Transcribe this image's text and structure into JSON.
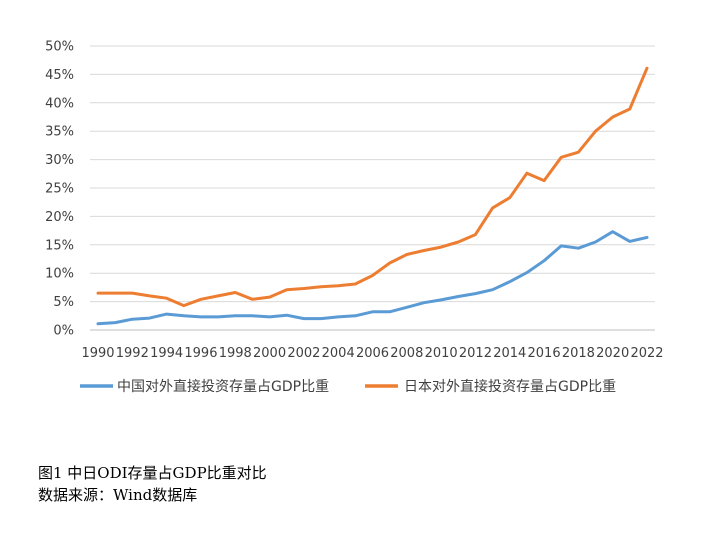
{
  "chart_data": {
    "type": "line",
    "x": [
      "1990",
      "1991",
      "1992",
      "1993",
      "1994",
      "1995",
      "1996",
      "1997",
      "1998",
      "1999",
      "2000",
      "2001",
      "2002",
      "2003",
      "2004",
      "2005",
      "2006",
      "2007",
      "2008",
      "2009",
      "2010",
      "2011",
      "2012",
      "2013",
      "2014",
      "2015",
      "2016",
      "2017",
      "2018",
      "2019",
      "2020",
      "2021",
      "2022"
    ],
    "xtick_labels": [
      "1990",
      "1992",
      "1994",
      "1996",
      "1998",
      "2000",
      "2002",
      "2004",
      "2006",
      "2008",
      "2010",
      "2012",
      "2014",
      "2016",
      "2018",
      "2020",
      "2022"
    ],
    "ytick_labels": [
      "0%",
      "5%",
      "10%",
      "15%",
      "20%",
      "25%",
      "30%",
      "35%",
      "40%",
      "45%",
      "50%"
    ],
    "ylim": [
      0,
      50
    ],
    "grid": true,
    "legend_position": "bottom",
    "series": [
      {
        "name": "中国对外直接投资存量占GDP比重",
        "color": "#5B9BD5",
        "values": [
          1.1,
          1.3,
          1.9,
          2.1,
          2.8,
          2.5,
          2.3,
          2.3,
          2.5,
          2.5,
          2.3,
          2.6,
          2.0,
          2.0,
          2.3,
          2.5,
          3.2,
          3.2,
          4.0,
          4.8,
          5.3,
          5.9,
          6.4,
          7.1,
          8.5,
          10.1,
          12.2,
          14.8,
          14.4,
          15.5,
          17.3,
          15.6,
          16.3
        ]
      },
      {
        "name": "日本对外直接投资存量占GDP比重",
        "color": "#ED7D31",
        "values": [
          6.5,
          6.5,
          6.5,
          6.0,
          5.6,
          4.3,
          5.4,
          6.0,
          6.6,
          5.4,
          5.8,
          7.1,
          7.3,
          7.6,
          7.8,
          8.1,
          9.6,
          11.8,
          13.3,
          14.0,
          14.6,
          15.5,
          16.8,
          21.5,
          23.3,
          27.6,
          26.3,
          30.4,
          31.3,
          35.0,
          37.5,
          38.9,
          46.1
        ]
      }
    ]
  },
  "caption": {
    "title": "图1   中日ODI存量占GDP比重对比",
    "source": "数据来源：Wind数据库"
  }
}
